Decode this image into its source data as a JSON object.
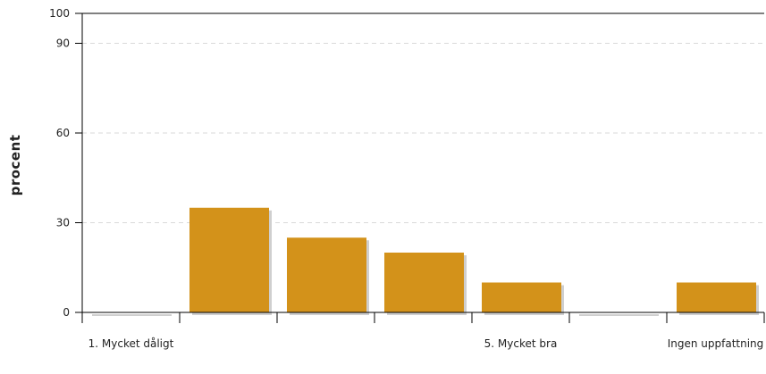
{
  "chart_data": {
    "type": "bar",
    "ylabel": "procent",
    "xlabel": "",
    "title": "",
    "ylim": [
      0,
      100
    ],
    "yticks": [
      0,
      30,
      60,
      90,
      100
    ],
    "grid": true,
    "legend": "none",
    "categories": [
      "1. Mycket dåligt",
      "",
      "",
      "",
      "5. Mycket bra",
      "",
      "Ingen uppfattning"
    ],
    "values": [
      0,
      35,
      25,
      20,
      10,
      0,
      10
    ],
    "colors": {
      "bar": "#D3921A",
      "bar_shadow": "#CFCFCF",
      "axis": "#000000",
      "grid": "#D9D9D9"
    }
  }
}
